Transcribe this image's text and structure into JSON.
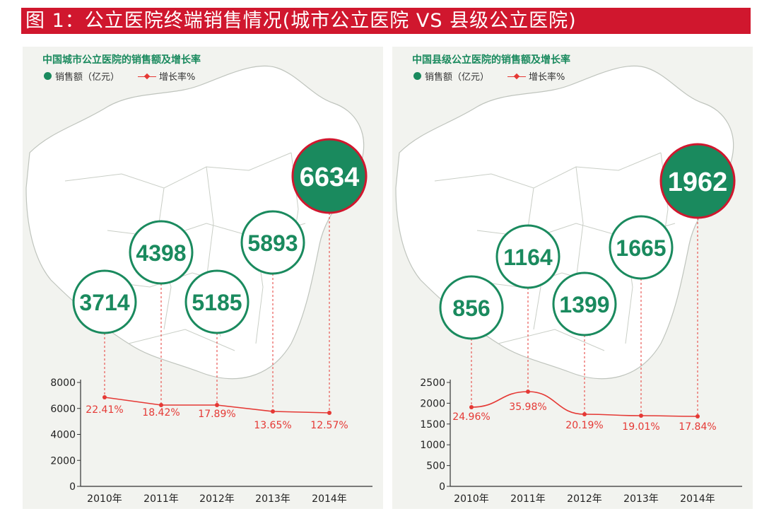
{
  "page_title": "图 1：公立医院终端销售情况(城市公立医院 VS 县级公立医院)",
  "legend": {
    "sales": "销售额（亿元）",
    "growth": "增长率%"
  },
  "colors": {
    "title_bar": "#d0172e",
    "bubble_green": "#1a8a5e",
    "growth_line": "#e53935",
    "highlight_ring": "#d0172e"
  },
  "chart_data": [
    {
      "type": "line",
      "title": "中国城市公立医院的销售额及增长率",
      "categories": [
        "2010年",
        "2011年",
        "2012年",
        "2013年",
        "2014年"
      ],
      "sales": [
        3714,
        4398,
        5185,
        5893,
        6634
      ],
      "growth_rate_labels": [
        "22.41%",
        "18.42%",
        "17.89%",
        "13.65%",
        "12.57%"
      ],
      "yticks": [
        0,
        2000,
        4000,
        6000,
        8000
      ],
      "ylim": [
        0,
        8000
      ],
      "series": [
        {
          "name": "增长率%",
          "values": [
            22.41,
            18.42,
            17.89,
            13.65,
            12.57
          ]
        }
      ]
    },
    {
      "type": "line",
      "title": "中国县级公立医院的销售额及增长率",
      "categories": [
        "2010年",
        "2011年",
        "2012年",
        "2013年",
        "2014年"
      ],
      "sales": [
        856,
        1164,
        1399,
        1665,
        1962
      ],
      "growth_rate_labels": [
        "24.96%",
        "35.98%",
        "20.19%",
        "19.01%",
        "17.84%"
      ],
      "yticks": [
        0,
        500,
        1000,
        1500,
        2000,
        2500
      ],
      "ylim": [
        0,
        2500
      ],
      "series": [
        {
          "name": "增长率%",
          "values": [
            24.96,
            35.98,
            20.19,
            19.01,
            17.84
          ]
        }
      ]
    }
  ]
}
